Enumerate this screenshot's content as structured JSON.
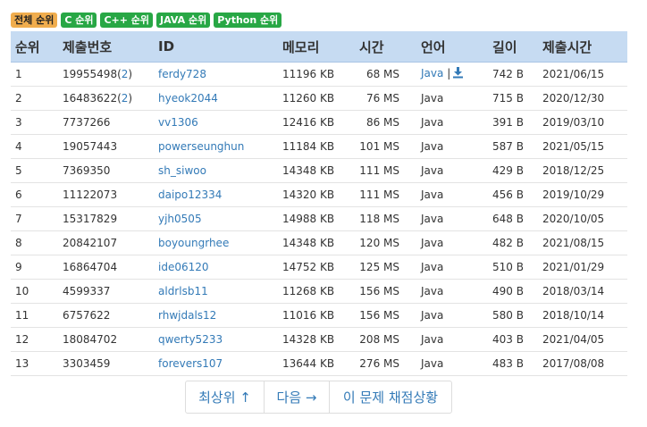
{
  "filters": [
    {
      "label": "전체 순위",
      "active": true
    },
    {
      "label": "C 순위",
      "active": false
    },
    {
      "label": "C++ 순위",
      "active": false
    },
    {
      "label": "JAVA 순위",
      "active": false
    },
    {
      "label": "Python 순위",
      "active": false
    }
  ],
  "table": {
    "headers": {
      "rank": "순위",
      "submission_no": "제출번호",
      "id": "ID",
      "memory": "메모리",
      "time": "시간",
      "language": "언어",
      "length": "길이",
      "submit_time": "제출시간"
    },
    "rows": [
      {
        "rank": "1",
        "submission_no": "19955498",
        "count": "2",
        "id": "ferdy728",
        "memory": "11196 KB",
        "time": "68 MS",
        "language": "Java",
        "language_linked": true,
        "download": true,
        "length": "742 B",
        "submit_time": "2021/06/15"
      },
      {
        "rank": "2",
        "submission_no": "16483622",
        "count": "2",
        "id": "hyeok2044",
        "memory": "11260 KB",
        "time": "76 MS",
        "language": "Java",
        "length": "715 B",
        "submit_time": "2020/12/30"
      },
      {
        "rank": "3",
        "submission_no": "7737266",
        "id": "vv1306",
        "memory": "12416 KB",
        "time": "86 MS",
        "language": "Java",
        "length": "391 B",
        "submit_time": "2019/03/10"
      },
      {
        "rank": "4",
        "submission_no": "19057443",
        "id": "powerseunghun",
        "memory": "11184 KB",
        "time": "101 MS",
        "language": "Java",
        "length": "587 B",
        "submit_time": "2021/05/15"
      },
      {
        "rank": "5",
        "submission_no": "7369350",
        "id": "sh_siwoo",
        "memory": "14348 KB",
        "time": "111 MS",
        "language": "Java",
        "length": "429 B",
        "submit_time": "2018/12/25"
      },
      {
        "rank": "6",
        "submission_no": "11122073",
        "id": "daipo12334",
        "memory": "14320 KB",
        "time": "111 MS",
        "language": "Java",
        "length": "456 B",
        "submit_time": "2019/10/29"
      },
      {
        "rank": "7",
        "submission_no": "15317829",
        "id": "yjh0505",
        "memory": "14988 KB",
        "time": "118 MS",
        "language": "Java",
        "length": "648 B",
        "submit_time": "2020/10/05"
      },
      {
        "rank": "8",
        "submission_no": "20842107",
        "id": "boyoungrhee",
        "memory": "14348 KB",
        "time": "120 MS",
        "language": "Java",
        "length": "482 B",
        "submit_time": "2021/08/15"
      },
      {
        "rank": "9",
        "submission_no": "16864704",
        "id": "ide06120",
        "memory": "14752 KB",
        "time": "125 MS",
        "language": "Java",
        "length": "510 B",
        "submit_time": "2021/01/29"
      },
      {
        "rank": "10",
        "submission_no": "4599337",
        "id": "aldrlsb11",
        "memory": "11268 KB",
        "time": "156 MS",
        "language": "Java",
        "length": "490 B",
        "submit_time": "2018/03/14"
      },
      {
        "rank": "11",
        "submission_no": "6757622",
        "id": "rhwjdals12",
        "memory": "11016 KB",
        "time": "156 MS",
        "language": "Java",
        "length": "580 B",
        "submit_time": "2018/10/14"
      },
      {
        "rank": "12",
        "submission_no": "18084702",
        "id": "qwerty5233",
        "memory": "14328 KB",
        "time": "208 MS",
        "language": "Java",
        "length": "403 B",
        "submit_time": "2021/04/05"
      },
      {
        "rank": "13",
        "submission_no": "3303459",
        "id": "forevers107",
        "memory": "13644 KB",
        "time": "276 MS",
        "language": "Java",
        "length": "483 B",
        "submit_time": "2017/08/08"
      }
    ]
  },
  "language_separator": "|",
  "pagination": {
    "top_label": "최상위 ↑",
    "next_label": "다음 →",
    "status_label": "이 문제 채점상황"
  },
  "icons": {
    "download": "download-icon"
  },
  "colors": {
    "header_bg": "#c6dbf2",
    "filter_active": "#f0ad4e",
    "filter_default": "#28a745",
    "link": "#337ab7"
  }
}
